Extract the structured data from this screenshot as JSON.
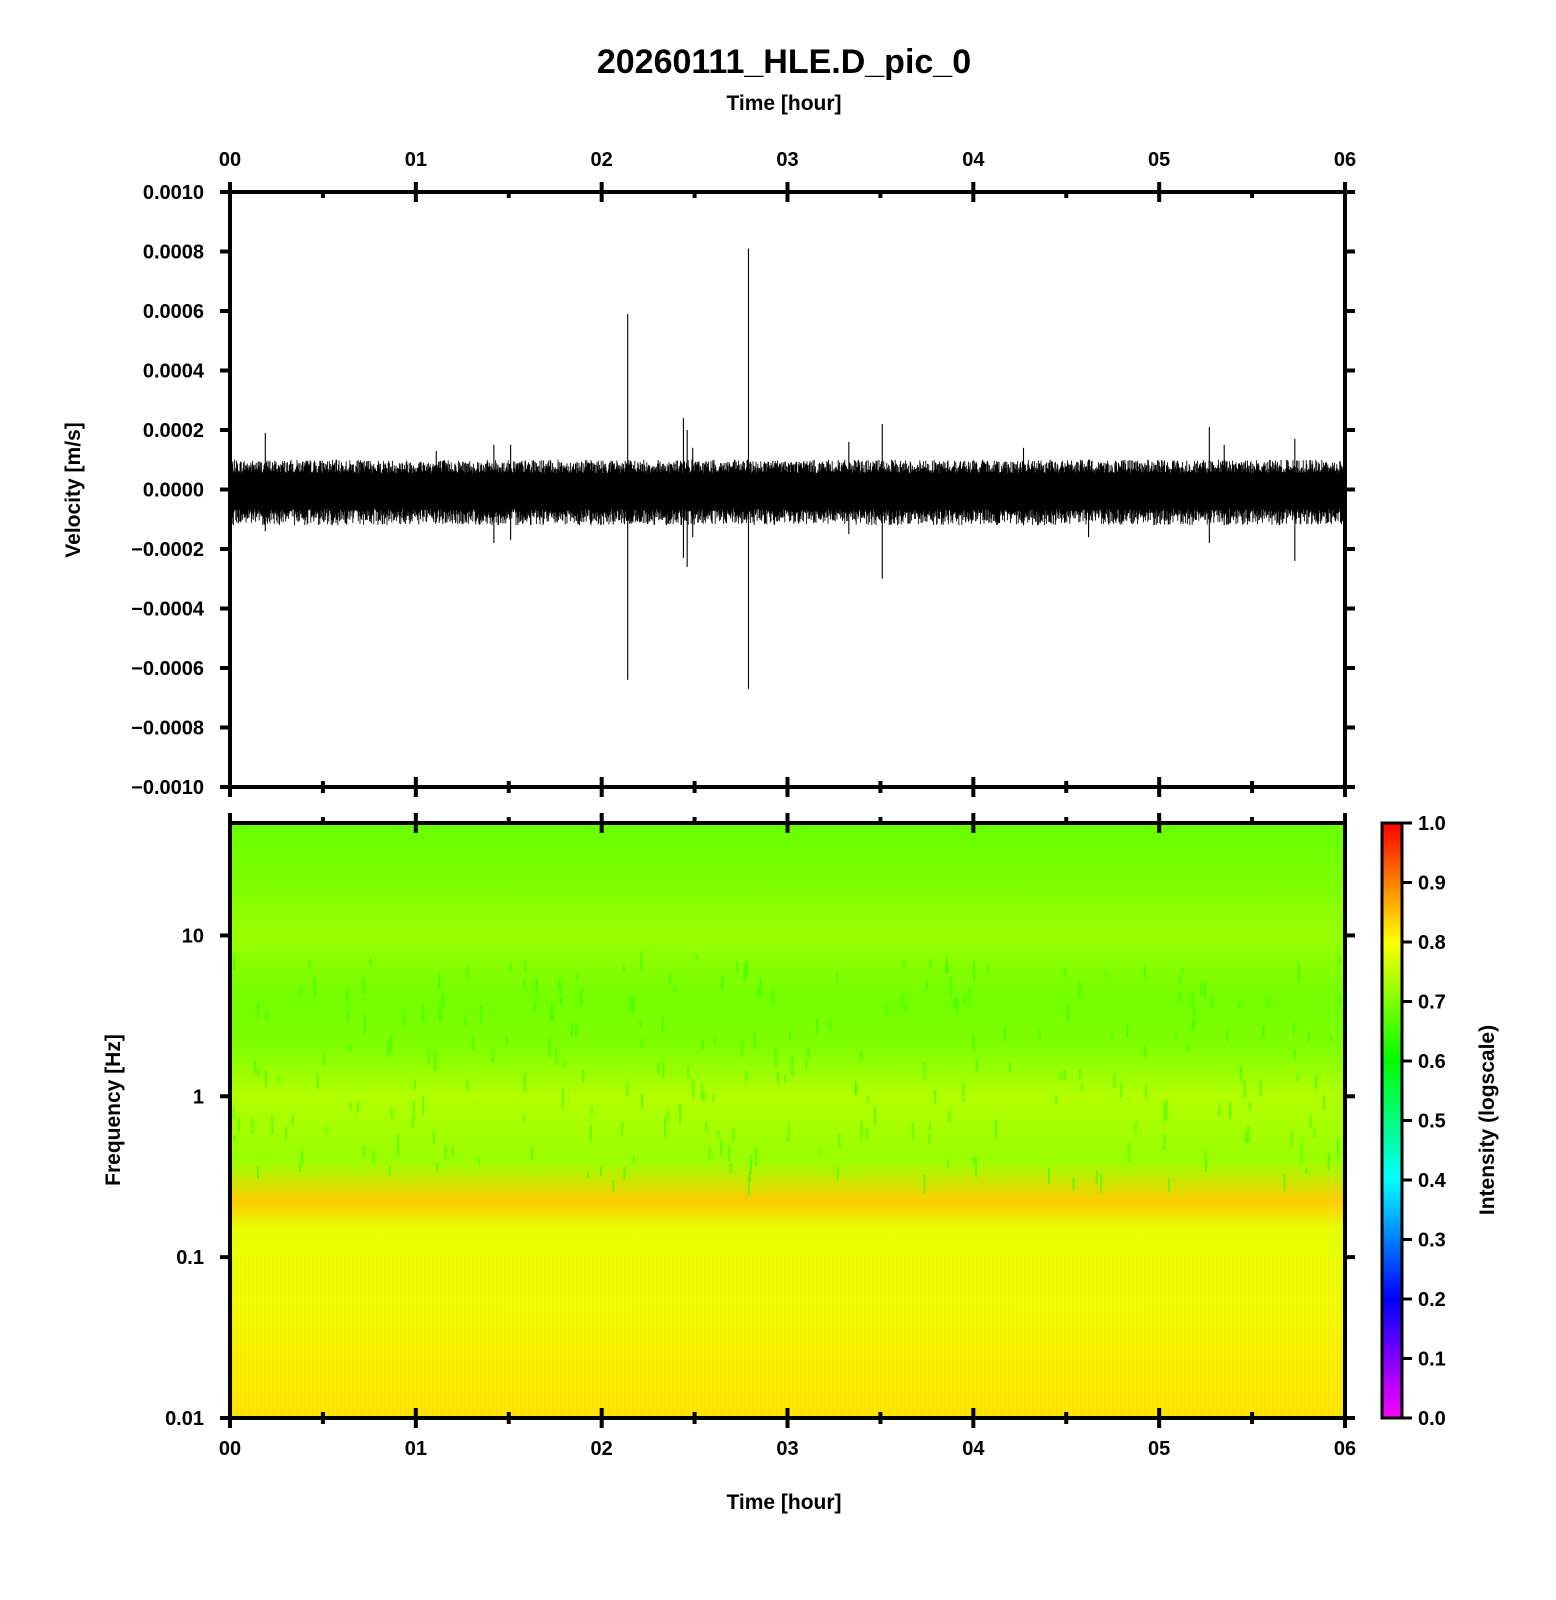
{
  "chart_data": [
    {
      "type": "line",
      "title": "20260111_HLE.D_pic_0",
      "xlabel": "Time [hour]",
      "ylabel": "Velocity [m/s]",
      "x_ticks": [
        "00",
        "01",
        "02",
        "03",
        "04",
        "05",
        "06"
      ],
      "y_ticks": [
        "0.0010",
        "0.0008",
        "0.0006",
        "0.0004",
        "0.0002",
        "0.0000",
        "−0.0002",
        "−0.0004",
        "−0.0006",
        "−0.0008",
        "−0.0010"
      ],
      "xlim": [
        0,
        6
      ],
      "ylim": [
        -0.001,
        0.001
      ],
      "series": [
        {
          "color": "#000000",
          "noise_band": [
            -0.00012,
            0.0001
          ],
          "spikes": [
            {
              "t": 0.19,
              "max": 0.00019,
              "min": -0.00014
            },
            {
              "t": 1.11,
              "max": 0.00013,
              "min": -0.00011
            },
            {
              "t": 1.42,
              "max": 0.00015,
              "min": -0.00018
            },
            {
              "t": 1.51,
              "max": 0.00015,
              "min": -0.00017
            },
            {
              "t": 2.14,
              "max": 0.00059,
              "min": -0.00064
            },
            {
              "t": 2.44,
              "max": 0.00024,
              "min": -0.00023
            },
            {
              "t": 2.46,
              "max": 0.0002,
              "min": -0.00026
            },
            {
              "t": 2.49,
              "max": 0.00014,
              "min": -0.00016
            },
            {
              "t": 2.79,
              "max": 0.00081,
              "min": -0.00067
            },
            {
              "t": 3.33,
              "max": 0.00016,
              "min": -0.00015
            },
            {
              "t": 3.51,
              "max": 0.00022,
              "min": -0.0003
            },
            {
              "t": 4.27,
              "max": 0.00014,
              "min": -0.00012
            },
            {
              "t": 4.62,
              "max": 0.0001,
              "min": -0.00016
            },
            {
              "t": 5.27,
              "max": 0.00021,
              "min": -0.00018
            },
            {
              "t": 5.35,
              "max": 0.00015,
              "min": -0.00012
            },
            {
              "t": 5.73,
              "max": 0.00017,
              "min": -0.00024
            }
          ]
        }
      ]
    },
    {
      "type": "heatmap",
      "xlabel": "Time [hour]",
      "ylabel": "Frequency [Hz]",
      "x_ticks": [
        "00",
        "01",
        "02",
        "03",
        "04",
        "05",
        "06"
      ],
      "y_ticks": [
        "10",
        "1",
        "0.1",
        "0.01"
      ],
      "y_scale": "log",
      "xlim": [
        0,
        6
      ],
      "ylim": [
        0.01,
        50
      ],
      "colorbar": {
        "label": "Intensity (logscale)",
        "ticks": [
          "1.0",
          "0.9",
          "0.8",
          "0.7",
          "0.6",
          "0.5",
          "0.4",
          "0.3",
          "0.2",
          "0.1",
          "0.0"
        ],
        "range": [
          0,
          1
        ],
        "colors": [
          "#ff00ff",
          "#0000ff",
          "#00ffff",
          "#00ff00",
          "#ffff00",
          "#ff0000"
        ]
      },
      "intensity_profile": [
        {
          "freq": 50,
          "value": 0.68
        },
        {
          "freq": 20,
          "value": 0.7
        },
        {
          "freq": 10,
          "value": 0.72
        },
        {
          "freq": 4,
          "value": 0.69
        },
        {
          "freq": 2,
          "value": 0.7
        },
        {
          "freq": 1,
          "value": 0.74
        },
        {
          "freq": 0.4,
          "value": 0.72
        },
        {
          "freq": 0.22,
          "value": 0.84
        },
        {
          "freq": 0.15,
          "value": 0.78
        },
        {
          "freq": 0.05,
          "value": 0.79
        },
        {
          "freq": 0.01,
          "value": 0.82
        }
      ]
    }
  ]
}
